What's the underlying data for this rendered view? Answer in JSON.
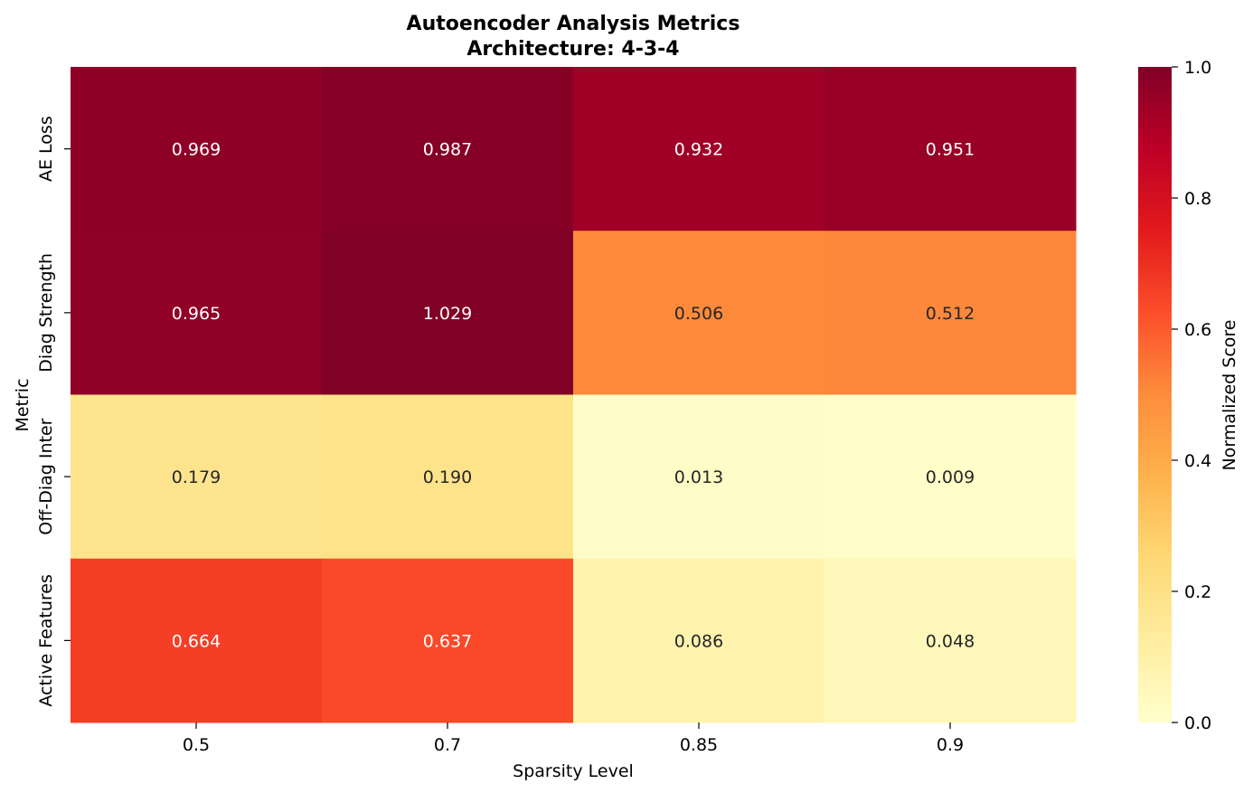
{
  "chart_data": {
    "type": "heatmap",
    "title_line1": "Autoencoder Analysis Metrics",
    "title_line2": "Architecture: 4-3-4",
    "xlabel": "Sparsity Level",
    "ylabel": "Metric",
    "x_categories": [
      "0.5",
      "0.7",
      "0.85",
      "0.9"
    ],
    "y_categories": [
      "AE Loss",
      "Diag Strength",
      "Off-Diag Inter",
      "Active Features"
    ],
    "values": [
      [
        0.969,
        0.987,
        0.932,
        0.951
      ],
      [
        0.965,
        1.029,
        0.506,
        0.512
      ],
      [
        0.179,
        0.19,
        0.013,
        0.009
      ],
      [
        0.664,
        0.637,
        0.086,
        0.048
      ]
    ],
    "value_labels": [
      [
        "0.969",
        "0.987",
        "0.932",
        "0.951"
      ],
      [
        "0.965",
        "1.029",
        "0.506",
        "0.512"
      ],
      [
        "0.179",
        "0.190",
        "0.013",
        "0.009"
      ],
      [
        "0.664",
        "0.637",
        "0.086",
        "0.048"
      ]
    ],
    "colormap": "YlOrRd",
    "vmin": 0.0,
    "vmax": 1.0,
    "colorbar": {
      "label": "Normalized Score",
      "ticks": [
        "0.0",
        "0.2",
        "0.4",
        "0.6",
        "0.8",
        "1.0"
      ]
    }
  }
}
